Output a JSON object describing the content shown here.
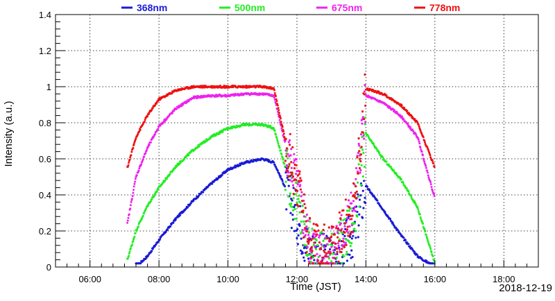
{
  "chart_data": {
    "type": "scatter",
    "xlabel": "Time (JST)",
    "ylabel": "Intensity (a.u.)",
    "date_label": "2018-12-19",
    "xlim": [
      "05:00",
      "19:00"
    ],
    "ylim": [
      0,
      1.4
    ],
    "x_ticks": [
      "06:00",
      "08:00",
      "10:00",
      "12:00",
      "14:00",
      "16:00",
      "18:00"
    ],
    "y_ticks": [
      "0",
      "0.2",
      "0.4",
      "0.6",
      "0.8",
      "1",
      "1.2",
      "1.4"
    ],
    "grid": true,
    "legend_position": "top",
    "series": [
      {
        "name": "368nm",
        "color": "#1a1ad6",
        "points": [
          [
            "07:20",
            0.0
          ],
          [
            "07:40",
            0.06
          ],
          [
            "08:00",
            0.15
          ],
          [
            "08:30",
            0.27
          ],
          [
            "09:00",
            0.37
          ],
          [
            "09:30",
            0.46
          ],
          [
            "10:00",
            0.54
          ],
          [
            "10:30",
            0.58
          ],
          [
            "11:00",
            0.6
          ],
          [
            "11:20",
            0.58
          ],
          [
            "11:40",
            0.44
          ],
          [
            "12:00",
            0.28
          ],
          [
            "12:20",
            0.1
          ],
          [
            "12:40",
            0.05
          ],
          [
            "13:00",
            0.06
          ],
          [
            "13:20",
            0.1
          ],
          [
            "13:40",
            0.2
          ],
          [
            "14:00",
            0.45
          ],
          [
            "14:30",
            0.32
          ],
          [
            "15:00",
            0.18
          ],
          [
            "15:30",
            0.06
          ],
          [
            "16:00",
            0.0
          ]
        ]
      },
      {
        "name": "500nm",
        "color": "#22ee22",
        "points": [
          [
            "07:05",
            0.04
          ],
          [
            "07:20",
            0.2
          ],
          [
            "07:40",
            0.34
          ],
          [
            "08:00",
            0.44
          ],
          [
            "08:30",
            0.56
          ],
          [
            "09:00",
            0.65
          ],
          [
            "09:30",
            0.72
          ],
          [
            "10:00",
            0.77
          ],
          [
            "10:30",
            0.79
          ],
          [
            "11:00",
            0.79
          ],
          [
            "11:20",
            0.77
          ],
          [
            "11:40",
            0.55
          ],
          [
            "12:00",
            0.35
          ],
          [
            "12:20",
            0.12
          ],
          [
            "12:40",
            0.06
          ],
          [
            "13:00",
            0.07
          ],
          [
            "13:20",
            0.14
          ],
          [
            "13:40",
            0.27
          ],
          [
            "14:00",
            0.74
          ],
          [
            "14:30",
            0.6
          ],
          [
            "15:00",
            0.49
          ],
          [
            "15:30",
            0.33
          ],
          [
            "16:00",
            0.02
          ]
        ]
      },
      {
        "name": "675nm",
        "color": "#ee22ee",
        "points": [
          [
            "07:05",
            0.24
          ],
          [
            "07:20",
            0.5
          ],
          [
            "07:40",
            0.66
          ],
          [
            "08:00",
            0.78
          ],
          [
            "08:30",
            0.88
          ],
          [
            "09:00",
            0.94
          ],
          [
            "09:30",
            0.95
          ],
          [
            "10:00",
            0.95
          ],
          [
            "10:30",
            0.96
          ],
          [
            "11:00",
            0.96
          ],
          [
            "11:20",
            0.95
          ],
          [
            "11:40",
            0.68
          ],
          [
            "12:00",
            0.45
          ],
          [
            "12:20",
            0.14
          ],
          [
            "12:40",
            0.08
          ],
          [
            "13:00",
            0.1
          ],
          [
            "13:20",
            0.18
          ],
          [
            "13:40",
            0.33
          ],
          [
            "14:00",
            0.95
          ],
          [
            "14:30",
            0.91
          ],
          [
            "15:00",
            0.84
          ],
          [
            "15:30",
            0.72
          ],
          [
            "16:00",
            0.38
          ]
        ]
      },
      {
        "name": "778nm",
        "color": "#ee1111",
        "points": [
          [
            "07:05",
            0.55
          ],
          [
            "07:20",
            0.72
          ],
          [
            "07:40",
            0.84
          ],
          [
            "08:00",
            0.93
          ],
          [
            "08:30",
            0.98
          ],
          [
            "09:00",
            1.0
          ],
          [
            "09:30",
            1.0
          ],
          [
            "10:00",
            1.0
          ],
          [
            "10:30",
            1.0
          ],
          [
            "11:00",
            1.0
          ],
          [
            "11:20",
            0.99
          ],
          [
            "11:40",
            0.7
          ],
          [
            "12:00",
            0.47
          ],
          [
            "12:20",
            0.15
          ],
          [
            "12:40",
            0.09
          ],
          [
            "13:00",
            0.11
          ],
          [
            "13:20",
            0.2
          ],
          [
            "13:40",
            0.36
          ],
          [
            "14:00",
            0.99
          ],
          [
            "14:30",
            0.96
          ],
          [
            "15:00",
            0.9
          ],
          [
            "15:30",
            0.8
          ],
          [
            "16:00",
            0.55
          ]
        ]
      }
    ]
  }
}
